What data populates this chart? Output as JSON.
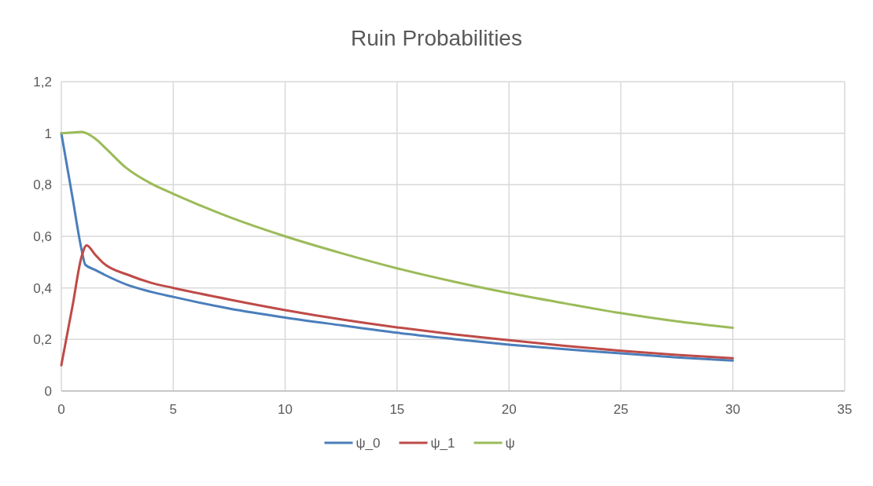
{
  "chart_data": {
    "type": "line",
    "title": "Ruin Probabilities",
    "xlim": [
      0,
      35
    ],
    "xticks": [
      0,
      5,
      10,
      15,
      20,
      25,
      30,
      35
    ],
    "ylim": [
      0,
      1.2
    ],
    "yticks": [
      0,
      {
        "value": 0.2,
        "label": "0,2"
      },
      {
        "value": 0.4,
        "label": "0,4"
      },
      {
        "value": 0.6,
        "label": "0,6"
      },
      {
        "value": 0.8,
        "label": "0,8"
      },
      1,
      {
        "value": 1.2,
        "label": "1,2"
      }
    ],
    "grid": true,
    "legend": "bottom",
    "marker": "none",
    "line_style": "solid",
    "series": [
      {
        "name": "ψ_0",
        "color": "#4a7ebb",
        "x": [
          0,
          0.5,
          0.9,
          1.07,
          1.5,
          1.95,
          3,
          4,
          5,
          7.5,
          10,
          12.5,
          15,
          17.5,
          20,
          22.5,
          25,
          27.5,
          30
        ],
        "values": [
          1,
          0.75,
          0.55,
          0.49,
          0.47,
          0.45,
          0.41,
          0.385,
          0.365,
          0.32,
          0.285,
          0.255,
          0.226,
          0.202,
          0.18,
          0.162,
          0.146,
          0.13,
          0.118
        ]
      },
      {
        "name": "ψ_1",
        "color": "#be4b48",
        "x": [
          0,
          0.5,
          0.9,
          1.13,
          1.5,
          1.89,
          3,
          4,
          5,
          7.5,
          10,
          12.5,
          15,
          17.5,
          20,
          22.5,
          25,
          27.5,
          30
        ],
        "values": [
          0.1,
          0.33,
          0.52,
          0.565,
          0.53,
          0.495,
          0.45,
          0.42,
          0.4,
          0.355,
          0.314,
          0.278,
          0.247,
          0.22,
          0.197,
          0.175,
          0.156,
          0.14,
          0.127
        ]
      },
      {
        "name": "ψ",
        "color": "#9bbb59",
        "x": [
          0,
          0.5,
          0.9,
          1.5,
          2,
          2.89,
          4,
          5,
          7.5,
          10,
          12.5,
          15,
          17.5,
          20,
          22.5,
          25,
          27.5,
          30
        ],
        "values": [
          1,
          1.003,
          1.005,
          0.98,
          0.94,
          0.866,
          0.805,
          0.765,
          0.675,
          0.6,
          0.535,
          0.476,
          0.425,
          0.38,
          0.34,
          0.302,
          0.27,
          0.245
        ]
      }
    ]
  }
}
